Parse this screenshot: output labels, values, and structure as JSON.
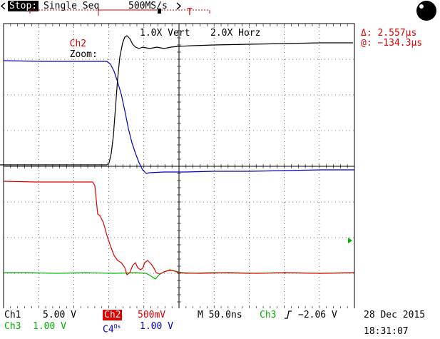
{
  "status": {
    "state": "Stop:",
    "mode": "Single Seq",
    "sample_rate": "500MS/s",
    "trigger_marker": "T"
  },
  "zoom": {
    "channel": "Ch2",
    "label": "Zoom:",
    "vert": "1.0X Vert",
    "horz": "2.0X Horz"
  },
  "cursor": {
    "delta": "Δ: 2.557µs",
    "at": "@: −134.3µs"
  },
  "channels": {
    "ch1": {
      "name": "Ch1",
      "scale": "5.00 V"
    },
    "ch2": {
      "name": "Ch2",
      "scale": "500mV"
    },
    "ch3": {
      "name": "Ch3",
      "scale": "1.00 V"
    },
    "ch4": {
      "name": "C4",
      "suffix": "Ωs",
      "scale": "1.00 V"
    }
  },
  "timebase": {
    "value": "M 50.0ns"
  },
  "trigger": {
    "source": "Ch3",
    "slope_icon": "rising-edge-icon",
    "level": "−2.06 V"
  },
  "datetime": {
    "date": "28 Dec 2015",
    "time": "18:31:07"
  },
  "colors": {
    "ch1": "#000000",
    "ch2": "#e00000",
    "ch3": "#00b000",
    "ch4": "#0000c0",
    "grid": "#000000"
  },
  "traces": {
    "ch1": [
      [
        0,
        231
      ],
      [
        30,
        231
      ],
      [
        100,
        231
      ],
      [
        150,
        231
      ],
      [
        153,
        228
      ],
      [
        156,
        215
      ],
      [
        159,
        190
      ],
      [
        162,
        150
      ],
      [
        165,
        110
      ],
      [
        168,
        80
      ],
      [
        172,
        60
      ],
      [
        175,
        52
      ],
      [
        178,
        50
      ],
      [
        182,
        54
      ],
      [
        186,
        62
      ],
      [
        190,
        66
      ],
      [
        195,
        68
      ],
      [
        200,
        66
      ],
      [
        210,
        68
      ],
      [
        220,
        66
      ],
      [
        230,
        68
      ],
      [
        240,
        66
      ],
      [
        250,
        65
      ],
      [
        270,
        64
      ],
      [
        300,
        63
      ],
      [
        350,
        62
      ],
      [
        400,
        61
      ],
      [
        450,
        60
      ],
      [
        495,
        60
      ]
    ],
    "ch4": [
      [
        5,
        85
      ],
      [
        60,
        86
      ],
      [
        100,
        86
      ],
      [
        150,
        86
      ],
      [
        155,
        90
      ],
      [
        160,
        100
      ],
      [
        165,
        115
      ],
      [
        170,
        132
      ],
      [
        175,
        155
      ],
      [
        180,
        180
      ],
      [
        185,
        200
      ],
      [
        190,
        215
      ],
      [
        195,
        228
      ],
      [
        200,
        238
      ],
      [
        205,
        243
      ],
      [
        210,
        242
      ],
      [
        230,
        241
      ],
      [
        260,
        241
      ],
      [
        300,
        240
      ],
      [
        350,
        240
      ],
      [
        400,
        239
      ],
      [
        450,
        238
      ],
      [
        497,
        238
      ]
    ],
    "ch2": [
      [
        5,
        254
      ],
      [
        50,
        255
      ],
      [
        100,
        255
      ],
      [
        130,
        255
      ],
      [
        133,
        260
      ],
      [
        135,
        280
      ],
      [
        137,
        300
      ],
      [
        140,
        302
      ],
      [
        145,
        312
      ],
      [
        150,
        330
      ],
      [
        155,
        345
      ],
      [
        160,
        358
      ],
      [
        165,
        365
      ],
      [
        170,
        368
      ],
      [
        175,
        375
      ],
      [
        178,
        385
      ],
      [
        182,
        382
      ],
      [
        186,
        372
      ],
      [
        190,
        368
      ],
      [
        193,
        375
      ],
      [
        197,
        378
      ],
      [
        200,
        376
      ],
      [
        203,
        368
      ],
      [
        207,
        365
      ],
      [
        212,
        370
      ],
      [
        216,
        376
      ],
      [
        219,
        382
      ],
      [
        224,
        384
      ],
      [
        230,
        381
      ],
      [
        236,
        379
      ],
      [
        243,
        379
      ],
      [
        250,
        382
      ],
      [
        280,
        383
      ],
      [
        320,
        382
      ],
      [
        360,
        383
      ],
      [
        400,
        382
      ],
      [
        450,
        383
      ],
      [
        497,
        382
      ]
    ],
    "ch3": [
      [
        5,
        382
      ],
      [
        40,
        382
      ],
      [
        80,
        383
      ],
      [
        120,
        382
      ],
      [
        160,
        383
      ],
      [
        190,
        382
      ],
      [
        205,
        383
      ],
      [
        212,
        387
      ],
      [
        218,
        391
      ],
      [
        223,
        385
      ],
      [
        230,
        381
      ],
      [
        238,
        378
      ],
      [
        246,
        380
      ],
      [
        260,
        383
      ],
      [
        300,
        382
      ],
      [
        350,
        383
      ],
      [
        400,
        382
      ],
      [
        450,
        383
      ],
      [
        497,
        382
      ]
    ]
  }
}
